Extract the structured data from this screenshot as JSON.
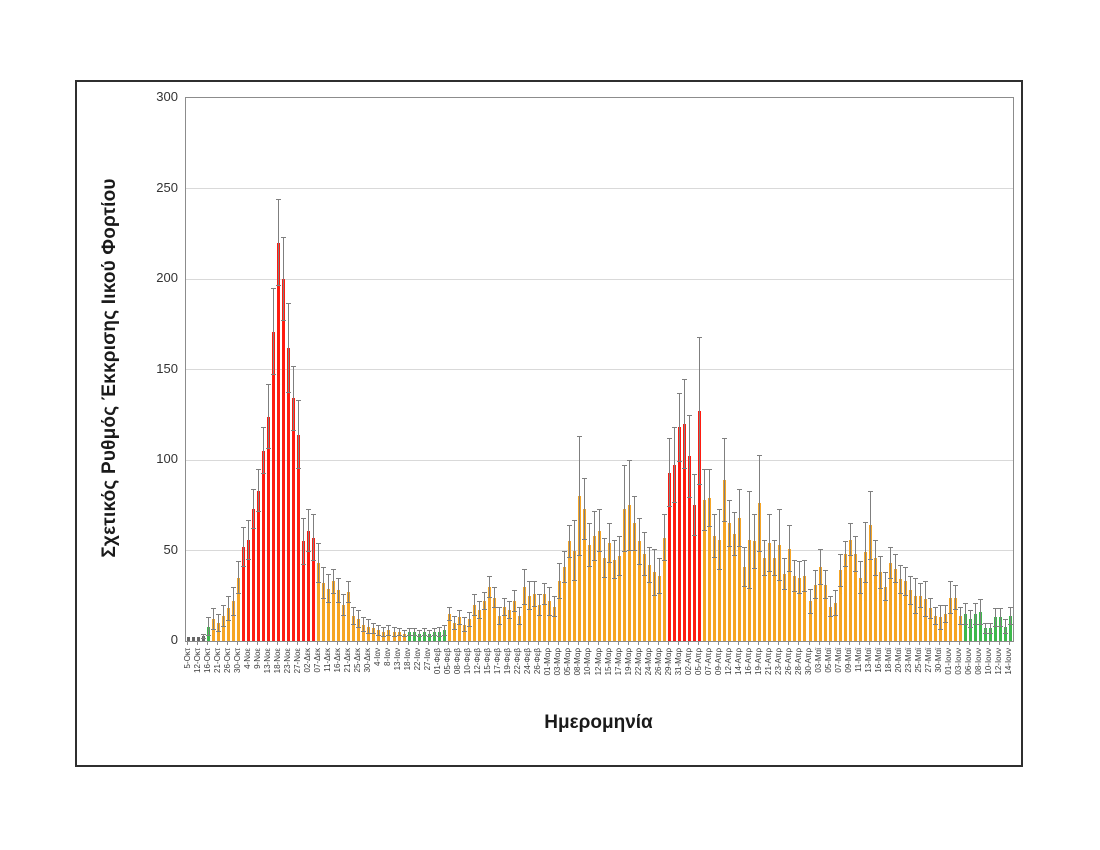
{
  "figure": {
    "y_axis": {
      "title": "Σχετικός Ρυθμός Έκκρισης Ιικού Φορτίου"
    },
    "x_axis": {
      "title": "Ημερομηνία"
    }
  },
  "chart_data": {
    "type": "bar",
    "error_bars": true,
    "title": "",
    "xlabel": "Ημερομηνία",
    "ylabel": "Σχετικός Ρυθμός Έκκρισης Ιικού Φορτίου",
    "ylim": [
      0,
      300
    ],
    "y_ticks": [
      0,
      50,
      100,
      150,
      200,
      250,
      300
    ],
    "grid": true,
    "legend": "none",
    "label_every_n_bars": 2,
    "categories": [
      "5-Οκτ",
      "12-Οκτ",
      "16-Οκτ",
      "21-Οκτ",
      "26-Οκτ",
      "30-Οκτ",
      "4-Νοε",
      "9-Νοε",
      "13-Νοε",
      "18-Νοε",
      "23-Νοε",
      "27-Νοε",
      "02-Δεκ",
      "07-Δεκ",
      "11-Δεκ",
      "16-Δεκ",
      "21-Δεκ",
      "25-Δεκ",
      "30-Δεκ",
      "4-Ιαν",
      "8-Ιαν",
      "13-Ιαν",
      "18-Ιαν",
      "22-Ιαν",
      "27-Ιαν",
      "01-Φεβ",
      "05-Φεβ",
      "08-Φεβ",
      "10-Φεβ",
      "12-Φεβ",
      "15-Φεβ",
      "17-Φεβ",
      "19-Φεβ",
      "22-Φεβ",
      "24-Φεβ",
      "26-Φεβ",
      "01-Μαρ",
      "03-Μαρ",
      "05-Μαρ",
      "08-Μαρ",
      "10-Μαρ",
      "12-Μαρ",
      "15-Μαρ",
      "17-Μαρ",
      "19-Μαρ",
      "22-Μαρ",
      "24-Μαρ",
      "26-Μαρ",
      "29-Μαρ",
      "31-Μαρ",
      "02-Απρ",
      "05-Απρ",
      "07-Απρ",
      "09-Απρ",
      "12-Απρ",
      "14-Απρ",
      "16-Απρ",
      "19-Απρ",
      "21-Απρ",
      "23-Απρ",
      "26-Απρ",
      "28-Απρ",
      "30-Απρ",
      "03-Μαϊ",
      "05-Μαϊ",
      "07-Μαϊ",
      "09-Μαϊ",
      "11-Μαϊ",
      "13-Μαϊ",
      "16-Μαϊ",
      "18-Μαϊ",
      "20-Μαϊ",
      "23-Μαϊ",
      "25-Μαϊ",
      "27-Μαϊ",
      "30-Μαϊ",
      "01-Ιουν",
      "03-Ιουν",
      "06-Ιουν",
      "08-Ιουν",
      "10-Ιουν",
      "12-Ιουν",
      "14-Ιουν"
    ],
    "values": [
      2,
      2,
      2,
      2.5,
      8,
      12,
      10,
      14,
      18,
      22,
      35,
      52,
      56,
      73,
      83,
      105,
      124,
      171,
      220,
      200,
      162,
      134,
      114,
      55,
      61,
      57,
      43,
      32,
      29,
      33,
      28,
      20,
      27,
      14,
      12,
      9,
      8,
      7,
      6,
      5,
      6,
      5,
      5,
      4,
      5,
      5,
      4,
      5,
      4,
      5,
      5,
      6,
      15,
      10,
      13,
      9,
      12,
      20,
      17,
      22,
      30,
      24,
      14,
      19,
      17,
      22,
      14,
      30,
      25,
      26,
      20,
      26,
      22,
      19,
      33,
      41,
      55,
      50,
      80,
      73,
      53,
      58,
      61,
      46,
      54,
      45,
      47,
      73,
      75,
      65,
      55,
      48,
      42,
      38,
      36,
      57,
      93,
      97,
      118,
      120,
      102,
      75,
      127,
      78,
      79,
      58,
      56,
      89,
      65,
      59,
      68,
      41,
      56,
      55,
      76,
      46,
      54,
      46,
      53,
      37,
      51,
      36,
      35,
      36,
      22,
      31,
      41,
      31,
      19,
      21,
      39,
      48,
      56,
      48,
      35,
      49,
      64,
      46,
      38,
      30,
      43,
      40,
      34,
      33,
      28,
      25,
      25,
      23,
      18,
      14,
      13,
      15,
      24,
      24,
      14,
      15,
      12,
      15,
      16,
      7,
      7,
      13,
      13,
      8,
      14
    ],
    "error_high": [
      3,
      3,
      3,
      4,
      13,
      18,
      15,
      20,
      25,
      30,
      44,
      63,
      67,
      84,
      95,
      118,
      142,
      195,
      244,
      223,
      187,
      152,
      133,
      68,
      73,
      70,
      54,
      41,
      37,
      40,
      35,
      26,
      33,
      19,
      17,
      13,
      12,
      10,
      9,
      8,
      9,
      8,
      7,
      6,
      7,
      7,
      6,
      7,
      6,
      7,
      8,
      9,
      19,
      14,
      17,
      13,
      16,
      26,
      22,
      27,
      36,
      30,
      19,
      24,
      22,
      28,
      19,
      40,
      33,
      33,
      26,
      32,
      30,
      25,
      43,
      50,
      64,
      67,
      113,
      90,
      65,
      72,
      73,
      57,
      65,
      56,
      58,
      97,
      100,
      80,
      68,
      60,
      52,
      51,
      46,
      70,
      112,
      118,
      137,
      145,
      125,
      92,
      168,
      95,
      95,
      70,
      73,
      112,
      78,
      71,
      84,
      52,
      83,
      70,
      103,
      56,
      70,
      56,
      73,
      46,
      64,
      45,
      44,
      45,
      29,
      39,
      51,
      39,
      25,
      28,
      48,
      55,
      65,
      58,
      44,
      66,
      83,
      56,
      47,
      38,
      52,
      48,
      42,
      41,
      36,
      35,
      32,
      33,
      24,
      19,
      20,
      20,
      33,
      31,
      19,
      21,
      17,
      21,
      23,
      10,
      10,
      18,
      18,
      12,
      19
    ],
    "bar_colors": "kkkkgoooooorrrrrrrrrrrrrrrooooooooooooooooooggggggggoooooooooooooooooooooooooooooooooooooooooooorrrrrrroooooooooooooooooooooooooooooooooooooooooooooooooooogggggggggg",
    "color_map": {
      "k": "#666666",
      "g": "#3db94c",
      "o": "#f6a525",
      "r": "#fe1b10"
    },
    "gridline_color": "#d9d9d9",
    "whisker_color": "#7f7f7f"
  }
}
